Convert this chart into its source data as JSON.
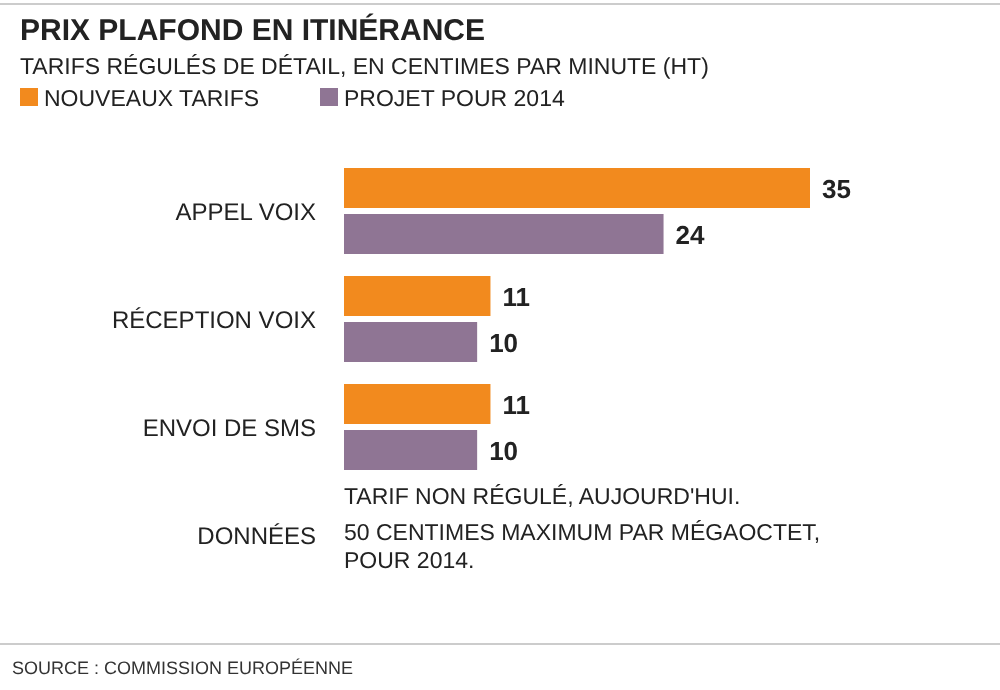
{
  "chart_data": {
    "type": "bar",
    "orientation": "horizontal",
    "title": "PRIX PLAFOND EN ITINÉRANCE",
    "subtitle": "TARIFS RÉGULÉS DE DÉTAIL, EN CENTIMES PAR MINUTE (HT)",
    "categories": [
      "APPEL VOIX",
      "RÉCEPTION VOIX",
      "ENVOI DE SMS",
      "DONNÉES"
    ],
    "series": [
      {
        "name": "NOUVEAUX TARIFS",
        "color": "#f28a1e",
        "values": [
          35,
          11,
          11,
          null
        ]
      },
      {
        "name": "PROJET POUR 2014",
        "color": "#8f7594",
        "values": [
          24,
          10,
          10,
          null
        ]
      }
    ],
    "data_labels": true,
    "legend": "top left",
    "annotations": [
      "TARIF NON RÉGULÉ, AUJOURD'HUI.",
      "50 CENTIMES MAXIMUM PAR MÉGAOCTET, POUR 2014.",
      "SOURCE : COMMISSION EUROPÉENNE"
    ]
  }
}
